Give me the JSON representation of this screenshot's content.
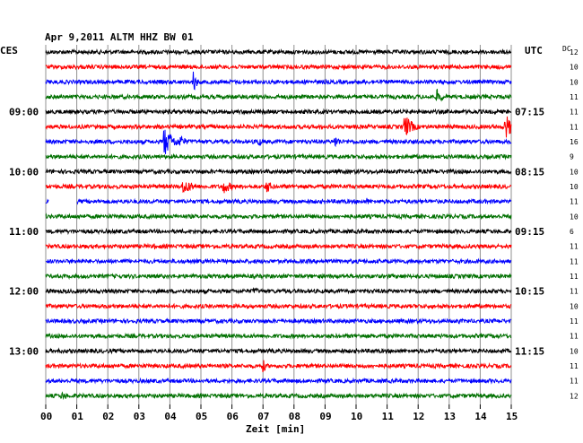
{
  "chart_data": {
    "type": "line",
    "title": "Apr 9,2011   ALTM HHZ BW 01",
    "left_tz": "CES",
    "right_tz": "UTC",
    "xlabel": "Zeit [min]",
    "xlim": [
      0,
      15
    ],
    "x_ticks": [
      "00",
      "01",
      "02",
      "03",
      "04",
      "05",
      "06",
      "07",
      "08",
      "09",
      "10",
      "11",
      "12",
      "13",
      "14",
      "15"
    ],
    "left_hour_labels": [
      {
        "row": 4,
        "label": "09:00"
      },
      {
        "row": 8,
        "label": "10:00"
      },
      {
        "row": 12,
        "label": "11:00"
      },
      {
        "row": 16,
        "label": "12:00"
      },
      {
        "row": 20,
        "label": "13:00"
      }
    ],
    "right_hour_labels": [
      {
        "row": 4,
        "label": "07:15"
      },
      {
        "row": 8,
        "label": "08:15"
      },
      {
        "row": 12,
        "label": "09:15"
      },
      {
        "row": 16,
        "label": "10:15"
      },
      {
        "row": 20,
        "label": "11:15"
      }
    ],
    "row_colors": [
      "#000000",
      "#ff0000",
      "#0000ff",
      "#007000"
    ],
    "scale_header": "DC",
    "row_scale": [
      12,
      10,
      10,
      11,
      11,
      11,
      16,
      9,
      10,
      10,
      11,
      10,
      6,
      11,
      11,
      11,
      11,
      10,
      11,
      11,
      10,
      11,
      11,
      12
    ],
    "events": [
      {
        "row": 1,
        "min": 9.6,
        "amp": 4,
        "width": 0.15
      },
      {
        "row": 2,
        "min": 4.75,
        "amp": 16,
        "width": 0.1
      },
      {
        "row": 3,
        "min": 12.6,
        "amp": 9,
        "width": 0.2
      },
      {
        "row": 5,
        "min": 11.55,
        "amp": 16,
        "width": 0.25
      },
      {
        "row": 5,
        "min": 14.8,
        "amp": 18,
        "width": 0.2
      },
      {
        "row": 6,
        "min": 3.8,
        "amp": 18,
        "width": 0.3
      },
      {
        "row": 6,
        "min": 4.3,
        "amp": 10,
        "width": 0.2
      },
      {
        "row": 6,
        "min": 6.8,
        "amp": 6,
        "width": 0.25
      },
      {
        "row": 6,
        "min": 9.3,
        "amp": 8,
        "width": 0.2
      },
      {
        "row": 9,
        "min": 4.4,
        "amp": 10,
        "width": 0.35
      },
      {
        "row": 9,
        "min": 5.7,
        "amp": 9,
        "width": 0.3
      },
      {
        "row": 9,
        "min": 7.1,
        "amp": 9,
        "width": 0.2
      },
      {
        "row": 10,
        "min": 10.35,
        "amp": 5,
        "width": 0.1
      },
      {
        "row": 12,
        "min": 4.6,
        "amp": 3,
        "width": 0.1
      },
      {
        "row": 13,
        "min": 3.5,
        "amp": 4,
        "width": 0.08
      },
      {
        "row": 14,
        "min": 9.8,
        "amp": 3,
        "width": 0.2
      },
      {
        "row": 16,
        "min": 6.7,
        "amp": 5,
        "width": 0.25
      },
      {
        "row": 18,
        "min": 13.3,
        "amp": 4,
        "width": 0.08
      },
      {
        "row": 19,
        "min": 14.5,
        "amp": 3,
        "width": 0.2
      },
      {
        "row": 21,
        "min": 7.0,
        "amp": 9,
        "width": 0.1
      },
      {
        "row": 23,
        "min": 0.5,
        "amp": 5,
        "width": 0.3
      }
    ],
    "gaps": [
      {
        "row": 10,
        "from": 0.1,
        "to": 1.0
      }
    ],
    "grid": true
  }
}
